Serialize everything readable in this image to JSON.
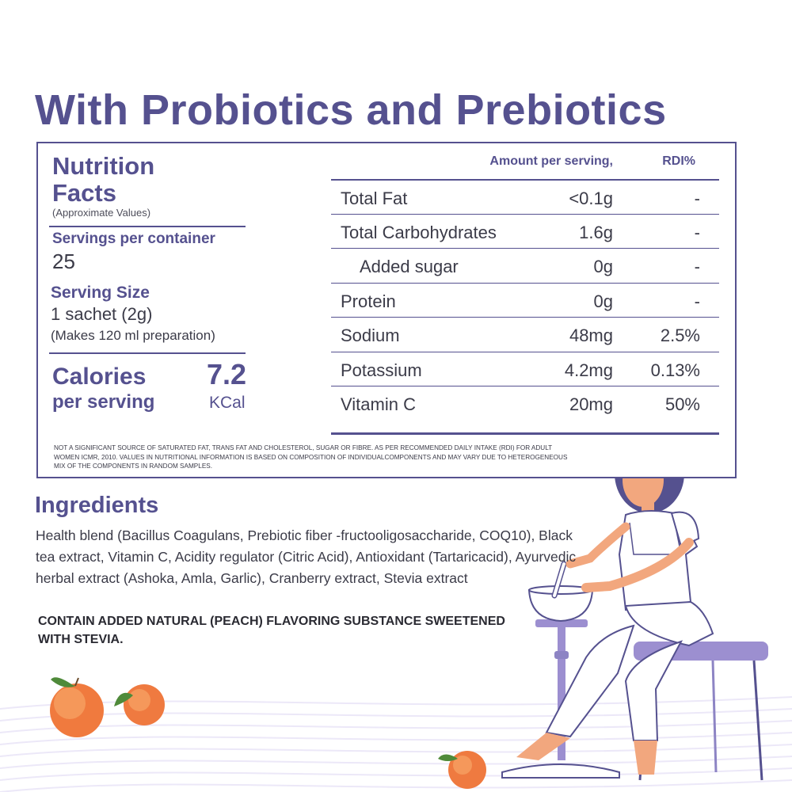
{
  "headline": "With Probiotics and Prebiotics",
  "nutrition": {
    "title": "Nutrition Facts",
    "approx_note": "(Approximate Values)",
    "servings_label": "Servings per container",
    "servings_value": "25",
    "serving_size_label": "Serving Size",
    "serving_size_value": "1 sachet (2g)",
    "serving_size_note": "(Makes 120 ml preparation)",
    "calories_label": "Calories",
    "calories_sub": "per serving",
    "calories_value": "7.2",
    "calories_unit": "KCal",
    "table": {
      "amount_header": "Amount per serving,",
      "rdi_header": "RDI%",
      "rows": [
        {
          "name": "Total Fat",
          "amount": "<0.1g",
          "rdi": "-"
        },
        {
          "name": "Total Carbohydrates",
          "amount": "1.6g",
          "rdi": "-"
        },
        {
          "name": "Added sugar",
          "amount": "0g",
          "rdi": "-"
        },
        {
          "name": "Protein",
          "amount": "0g",
          "rdi": "-"
        },
        {
          "name": "Sodium",
          "amount": "48mg",
          "rdi": "2.5%"
        },
        {
          "name": "Potassium",
          "amount": "4.2mg",
          "rdi": "0.13%"
        },
        {
          "name": "Vitamin C",
          "amount": "20mg",
          "rdi": "50%"
        }
      ]
    },
    "footnote": "Not a significant source of saturated fat, trans fat and cholesterol, sugar or fibre. As per recommended daily intake (RDI) for adult women ICMR, 2010. Values in nutritional information is based on composition of individualcomponents and may vary due to heterogeneous mix of the components in random samples."
  },
  "ingredients": {
    "title": "Ingredients",
    "text": "Health blend (Bacillus Coagulans, Prebiotic fiber -fructooligosaccharide, COQ10), Black tea extract, Vitamin C, Acidity regulator (Citric Acid), Antioxidant (Tartaricacid), Ayurvedic herbal extract  (Ashoka, Amla, Garlic), Cranberry extract, Stevia extract",
    "note": "CONTAIN ADDED NATURAL (PEACH) FLAVORING SUBSTANCE SWEETENED WITH STEVIA."
  },
  "illustration": {
    "subject": "woman-grinding-with-mortar-and-pestle",
    "fruit": "peach",
    "colors": {
      "accent": "#55518f",
      "lavender": "#b4a8dc",
      "skin": "#f2a77e",
      "peach": "#f07a3e"
    }
  }
}
